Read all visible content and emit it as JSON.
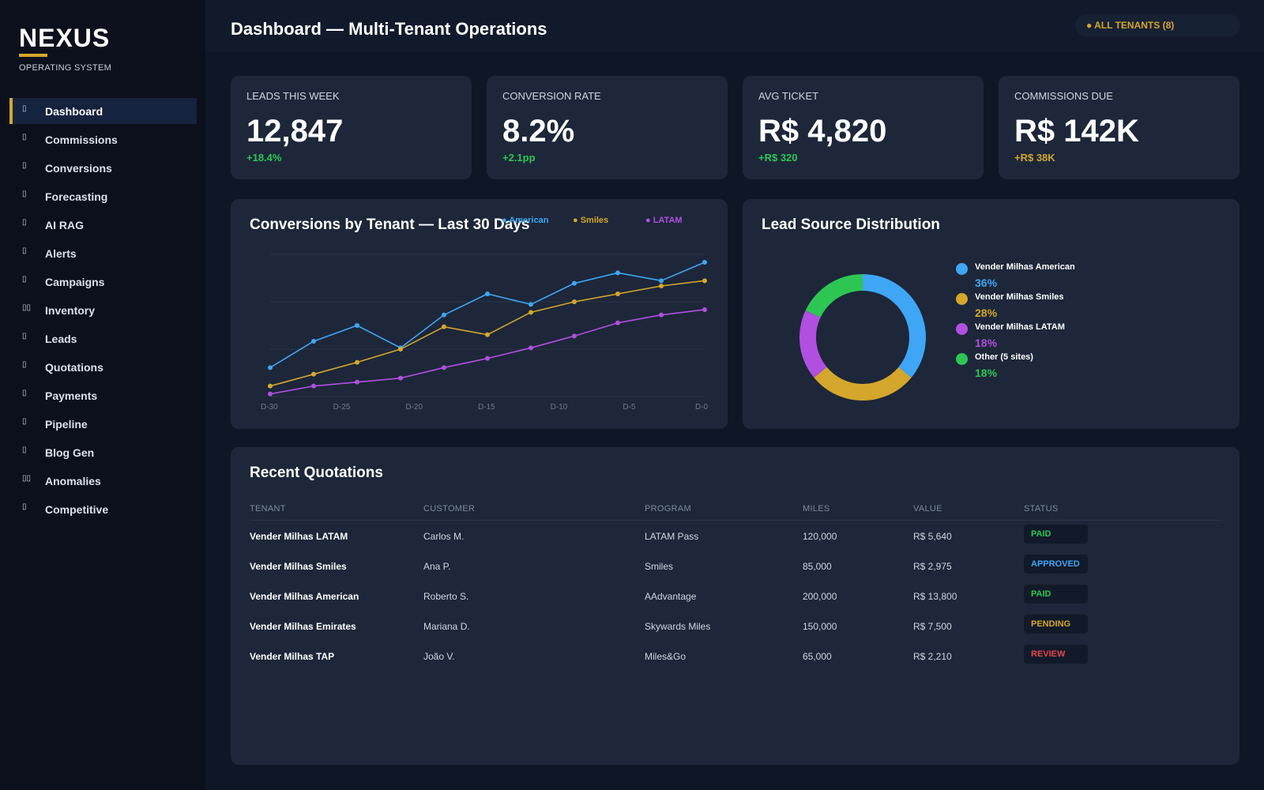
{
  "brand": {
    "name": "NEXUS",
    "subtitle": "OPERATING SYSTEM",
    "accent": "#d4a72c"
  },
  "sidebar": {
    "items": [
      {
        "label": "Dashboard",
        "icon": "dashboard-icon",
        "glyph": "▯",
        "active": true
      },
      {
        "label": "Commissions",
        "icon": "commissions-icon",
        "glyph": "▯"
      },
      {
        "label": "Conversions",
        "icon": "conversions-icon",
        "glyph": "▯"
      },
      {
        "label": "Forecasting",
        "icon": "forecasting-icon",
        "glyph": "▯"
      },
      {
        "label": "AI RAG",
        "icon": "ai-rag-icon",
        "glyph": "▯"
      },
      {
        "label": "Alerts",
        "icon": "alerts-icon",
        "glyph": "▯"
      },
      {
        "label": "Campaigns",
        "icon": "campaigns-icon",
        "glyph": "▯"
      },
      {
        "label": "Inventory",
        "icon": "inventory-icon",
        "glyph": "▯▯"
      },
      {
        "label": "Leads",
        "icon": "leads-icon",
        "glyph": "▯"
      },
      {
        "label": "Quotations",
        "icon": "quotations-icon",
        "glyph": "▯"
      },
      {
        "label": "Payments",
        "icon": "payments-icon",
        "glyph": "▯"
      },
      {
        "label": "Pipeline",
        "icon": "pipeline-icon",
        "glyph": "▯"
      },
      {
        "label": "Blog Gen",
        "icon": "blog-gen-icon",
        "glyph": "▯"
      },
      {
        "label": "Anomalies",
        "icon": "anomalies-icon",
        "glyph": "▯▯"
      },
      {
        "label": "Competitive",
        "icon": "competitive-icon",
        "glyph": "▯"
      }
    ]
  },
  "header": {
    "title": "Dashboard — Multi-Tenant Operations",
    "tenant_filter": "● ALL TENANTS (8)"
  },
  "kpis": [
    {
      "label": "LEADS THIS WEEK",
      "value": "12,847",
      "delta": "+18.4%",
      "delta_color": "#2dc653"
    },
    {
      "label": "CONVERSION RATE",
      "value": "8.2%",
      "delta": "+2.1pp",
      "delta_color": "#2dc653"
    },
    {
      "label": "AVG TICKET",
      "value": "R$ 4,820",
      "delta": "+R$ 320",
      "delta_color": "#2dc653"
    },
    {
      "label": "COMMISSIONS DUE",
      "value": "R$ 142K",
      "delta": "+R$ 38K",
      "delta_color": "#d4a72c"
    }
  ],
  "conversions_panel": {
    "title": "Conversions by Tenant — Last 30 Days",
    "chart_data": {
      "type": "line",
      "x": [
        "D-30",
        "D-27",
        "D-24",
        "D-21",
        "D-18",
        "D-15",
        "D-12",
        "D-9",
        "D-6",
        "D-3",
        "D-0"
      ],
      "x_tick_labels": [
        "D-30",
        "D-25",
        "D-20",
        "D-15",
        "D-10",
        "D-5",
        "D-0"
      ],
      "ylim": [
        0,
        100
      ],
      "grid": true,
      "legend_position": "top-right",
      "series": [
        {
          "name": "● American",
          "color": "#3ea6f5",
          "values": [
            34,
            54,
            66,
            49,
            74,
            90,
            82,
            98,
            106,
            100,
            114
          ]
        },
        {
          "name": "● Smiles",
          "color": "#d4a72c",
          "values": [
            20,
            29,
            38,
            48,
            65,
            59,
            76,
            84,
            90,
            96,
            100
          ]
        },
        {
          "name": "● LATAM",
          "color": "#b14fe0",
          "values": [
            14,
            20,
            23,
            26,
            34,
            41,
            49,
            58,
            68,
            74,
            78
          ]
        }
      ]
    }
  },
  "lead_source_panel": {
    "title": "Lead Source Distribution",
    "chart_data": {
      "type": "pie",
      "categories": [
        "Vender Milhas American",
        "Vender Milhas Smiles",
        "Vender Milhas LATAM",
        "Other (5 sites)"
      ],
      "values": [
        36,
        28,
        18,
        18
      ],
      "labels": [
        "36%",
        "28%",
        "18%",
        "18%"
      ],
      "colors": [
        "#3ea6f5",
        "#d4a72c",
        "#b14fe0",
        "#2dc653"
      ],
      "donut": true,
      "legend_position": "right"
    }
  },
  "quotations": {
    "title": "Recent Quotations",
    "columns": [
      "TENANT",
      "CUSTOMER",
      "PROGRAM",
      "MILES",
      "VALUE",
      "STATUS"
    ],
    "rows": [
      {
        "tenant": "Vender Milhas LATAM",
        "customer": "Carlos M.",
        "program": "LATAM Pass",
        "miles": "120,000",
        "value": "R$ 5,640",
        "status": "PAID",
        "status_color": "#2dc653"
      },
      {
        "tenant": "Vender Milhas Smiles",
        "customer": "Ana P.",
        "program": "Smiles",
        "miles": "85,000",
        "value": "R$ 2,975",
        "status": "APPROVED",
        "status_color": "#3ea6f5"
      },
      {
        "tenant": "Vender Milhas American",
        "customer": "Roberto S.",
        "program": "AAdvantage",
        "miles": "200,000",
        "value": "R$ 13,800",
        "status": "PAID",
        "status_color": "#2dc653"
      },
      {
        "tenant": "Vender Milhas Emirates",
        "customer": "Mariana D.",
        "program": "Skywards Miles",
        "miles": "150,000",
        "value": "R$ 7,500",
        "status": "PENDING",
        "status_color": "#d4a72c"
      },
      {
        "tenant": "Vender Milhas TAP",
        "customer": "João V.",
        "program": "Miles&Go",
        "miles": "65,000",
        "value": "R$ 2,210",
        "status": "REVIEW",
        "status_color": "#e5484d"
      }
    ]
  }
}
